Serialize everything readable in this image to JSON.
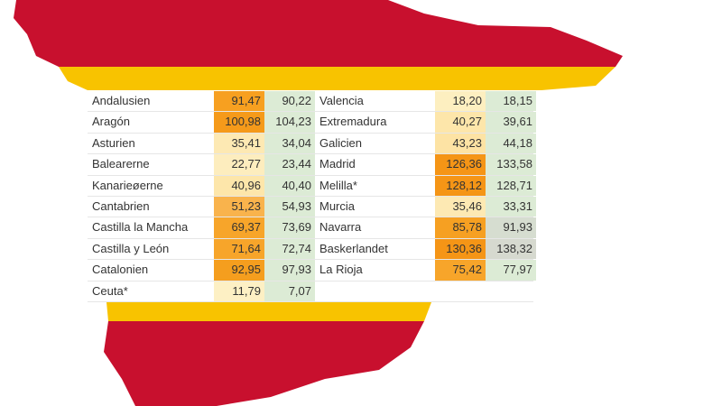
{
  "table": {
    "left": [
      {
        "region": "Andalusien",
        "values": [
          "91,47",
          "90,22"
        ],
        "fills": [
          "#f7a020",
          "#dcebd5"
        ]
      },
      {
        "region": "Aragón",
        "values": [
          "100,98",
          "104,23"
        ],
        "fills": [
          "#f59a1a",
          "#dcebd5"
        ]
      },
      {
        "region": "Asturien",
        "values": [
          "35,41",
          "34,04"
        ],
        "fills": [
          "#fde9b3",
          "#dcebd5"
        ]
      },
      {
        "region": "Balearerne",
        "values": [
          "22,77",
          "23,44"
        ],
        "fills": [
          "#fdedbe",
          "#dcebd5"
        ]
      },
      {
        "region": "Kanarieøerne",
        "values": [
          "40,96",
          "40,40"
        ],
        "fills": [
          "#fde6aa",
          "#dcebd5"
        ]
      },
      {
        "region": "Cantabrien",
        "values": [
          "51,23",
          "54,93"
        ],
        "fills": [
          "#f9b34c",
          "#dcebd5"
        ]
      },
      {
        "region": "Castilla la Mancha",
        "values": [
          "69,37",
          "73,69"
        ],
        "fills": [
          "#f7a52a",
          "#dcebd5"
        ]
      },
      {
        "region": "Castilla y León",
        "values": [
          "71,64",
          "72,74"
        ],
        "fills": [
          "#f7a52a",
          "#dcebd5"
        ]
      },
      {
        "region": "Catalonien",
        "values": [
          "92,95",
          "97,93"
        ],
        "fills": [
          "#f59e1e",
          "#dcebd5"
        ]
      },
      {
        "region": "Ceuta*",
        "values": [
          "11,79",
          "7,07"
        ],
        "fills": [
          "#fdf0c4",
          "#dcebd5"
        ]
      }
    ],
    "right": [
      {
        "region": "Valencia",
        "values": [
          "18,20",
          "18,15"
        ],
        "fills": [
          "#fdefc0",
          "#dcebd5"
        ]
      },
      {
        "region": "Extremadura",
        "values": [
          "40,27",
          "39,61"
        ],
        "fills": [
          "#fde6aa",
          "#dcebd5"
        ]
      },
      {
        "region": "Galicien",
        "values": [
          "43,23",
          "44,18"
        ],
        "fills": [
          "#fde3a4",
          "#dcebd5"
        ]
      },
      {
        "region": "Madrid",
        "values": [
          "126,36",
          "133,58"
        ],
        "fills": [
          "#f59516",
          "#dcebd5"
        ]
      },
      {
        "region": "Melilla*",
        "values": [
          "128,12",
          "128,71"
        ],
        "fills": [
          "#f59516",
          "#dcebd5"
        ]
      },
      {
        "region": "Murcia",
        "values": [
          "35,46",
          "33,31"
        ],
        "fills": [
          "#fde9b3",
          "#dcebd5"
        ]
      },
      {
        "region": "Navarra",
        "values": [
          "85,78",
          "91,93"
        ],
        "fills": [
          "#f6a022",
          "#d6ddd0"
        ]
      },
      {
        "region": "Baskerlandet",
        "values": [
          "130,36",
          "138,32"
        ],
        "fills": [
          "#f59516",
          "#d6d9cf"
        ]
      },
      {
        "region": "La Rioja",
        "values": [
          "75,42",
          "77,97"
        ],
        "fills": [
          "#f7a52a",
          "#dcebd5"
        ]
      }
    ]
  }
}
